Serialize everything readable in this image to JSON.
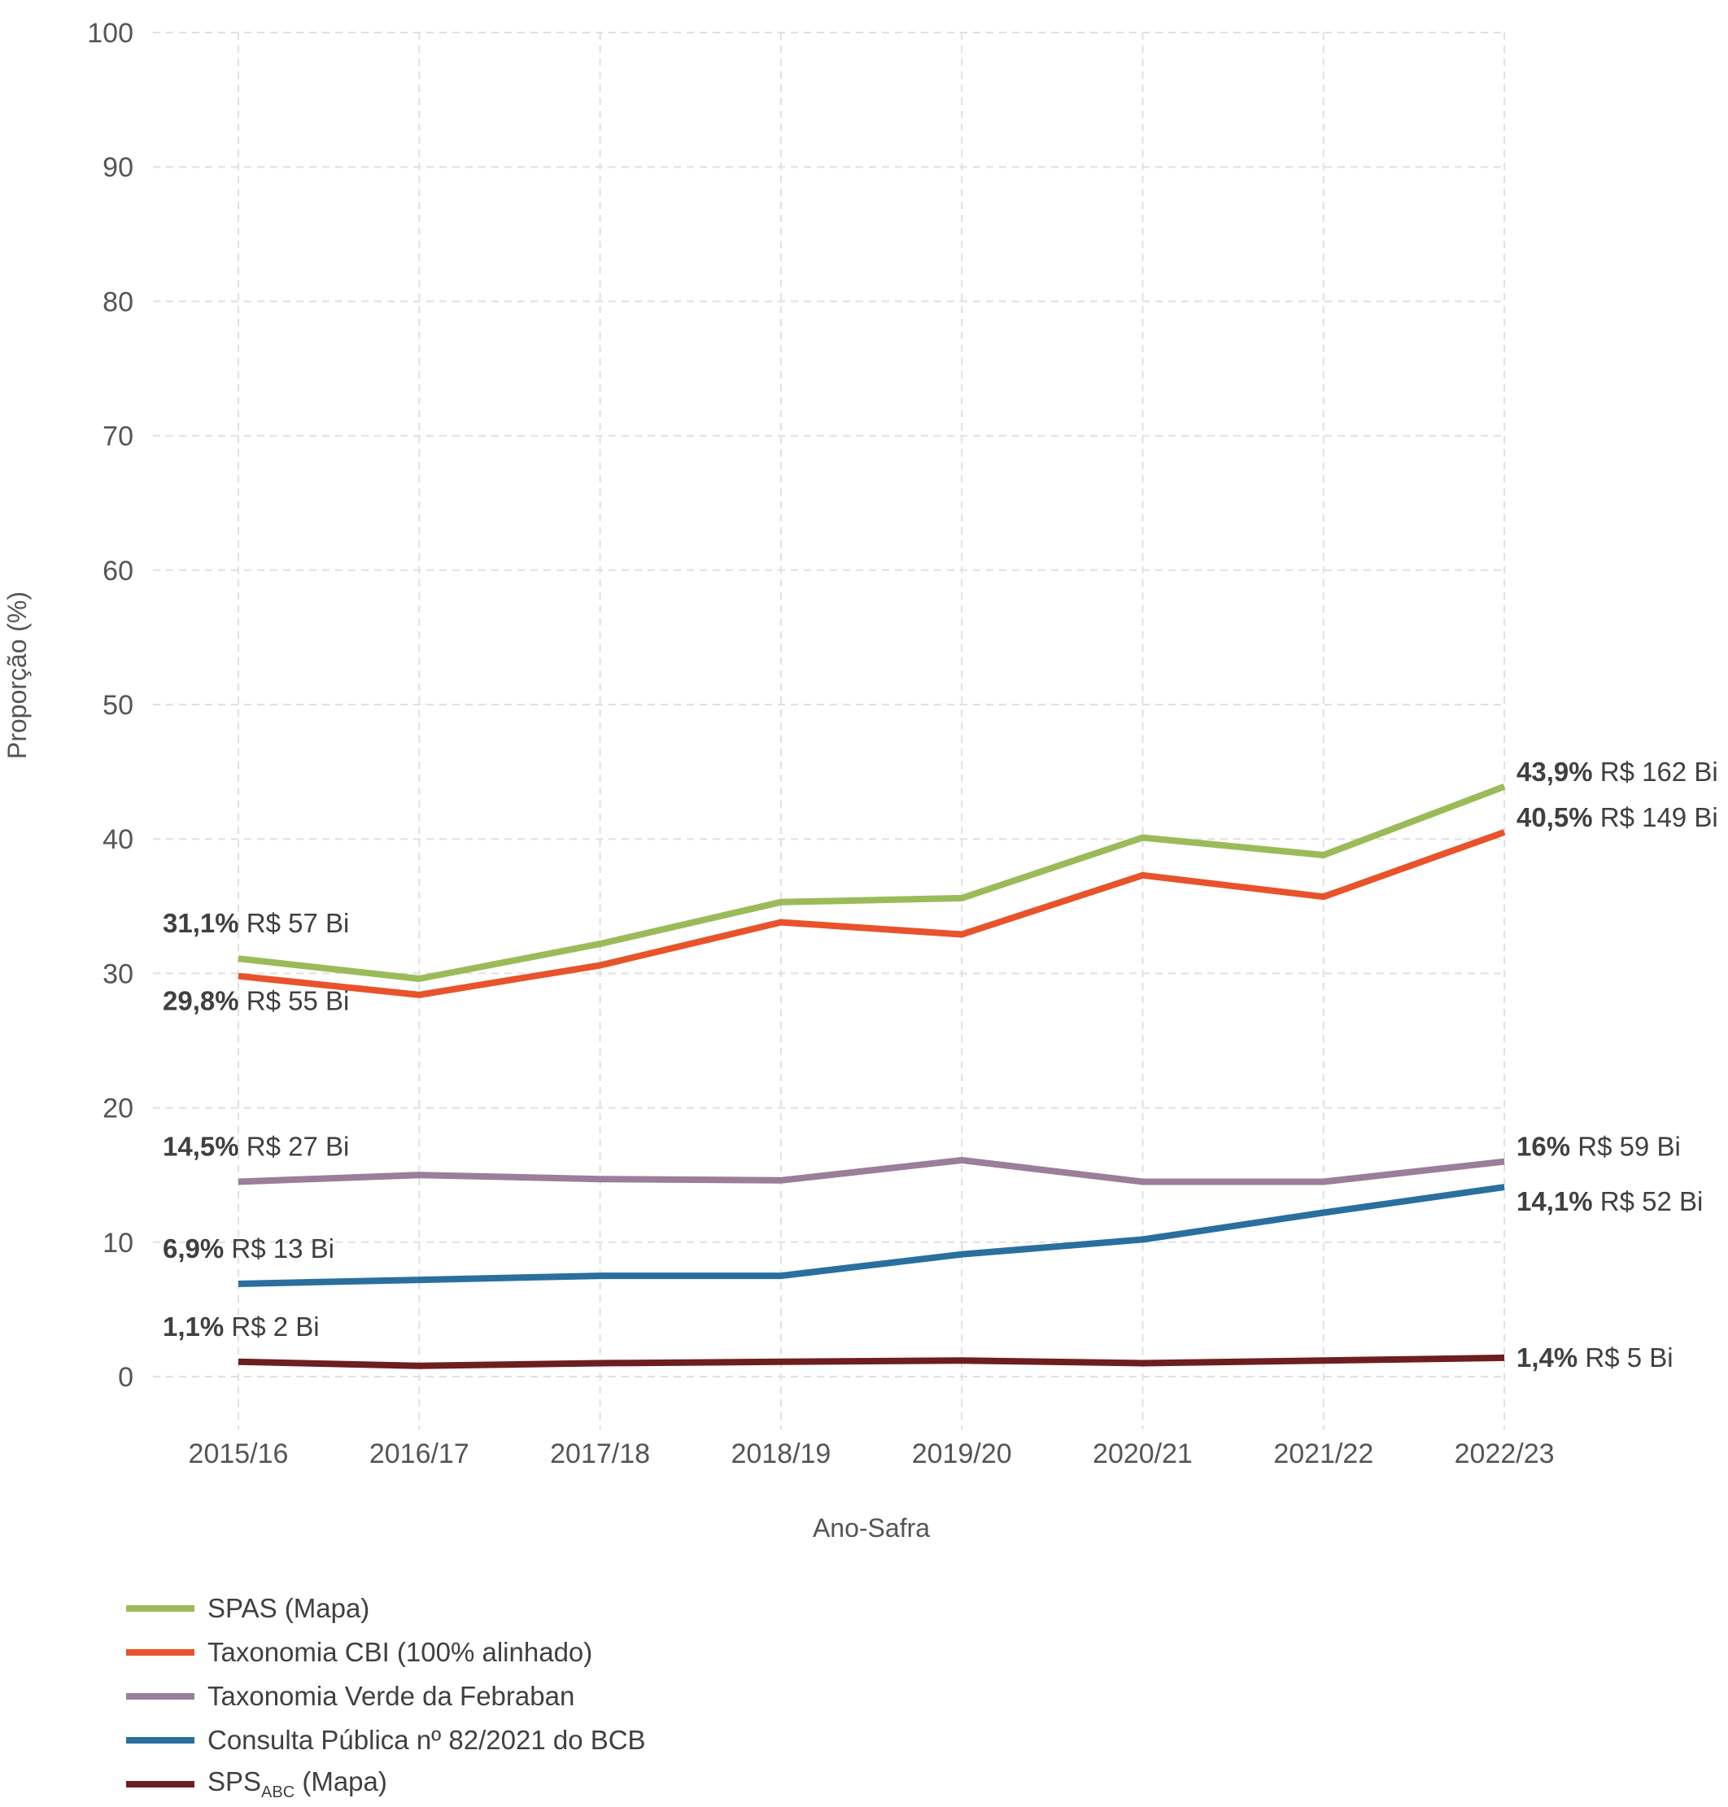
{
  "chart_data": {
    "type": "line",
    "xlabel": "Ano-Safra",
    "ylabel": "Proporção (%)",
    "ylim": [
      0,
      100
    ],
    "yticks": [
      "0",
      "10",
      "20",
      "30",
      "40",
      "50",
      "60",
      "70",
      "80",
      "90",
      "100"
    ],
    "grid": true,
    "legend_position": "bottom-left",
    "categories": [
      "2015/16",
      "2016/17",
      "2017/18",
      "2018/19",
      "2019/20",
      "2020/21",
      "2021/22",
      "2022/23"
    ],
    "series": [
      {
        "name": "SPAS (Mapa)",
        "color": "#9bbb59",
        "values": [
          31.1,
          29.6,
          32.2,
          35.3,
          35.6,
          40.1,
          38.8,
          43.9
        ],
        "start_label": {
          "pct": "31,1%",
          "amount": " R$ 57 Bi"
        },
        "end_label": {
          "pct": "43,9%",
          "amount": " R$ 162 Bi"
        }
      },
      {
        "name": "Taxonomia CBI (100% alinhado)",
        "color": "#e8532b",
        "values": [
          29.8,
          28.4,
          30.6,
          33.8,
          32.9,
          37.3,
          35.7,
          40.5
        ],
        "start_label": {
          "pct": "29,8%",
          "amount": " R$ 55 Bi"
        },
        "end_label": {
          "pct": "40,5%",
          "amount": " R$ 149 Bi"
        }
      },
      {
        "name": "Taxonomia Verde da Febraban",
        "color": "#9a7e9a",
        "values": [
          14.5,
          15.0,
          14.7,
          14.6,
          16.1,
          14.5,
          14.5,
          16.0
        ],
        "start_label": {
          "pct": "14,5%",
          "amount": " R$ 27 Bi"
        },
        "end_label": {
          "pct": "16%",
          "amount": " R$ 59 Bi"
        }
      },
      {
        "name": "Consulta Pública nº 82/2021 do BCB",
        "color": "#2a6f9e",
        "values": [
          6.9,
          7.2,
          7.5,
          7.5,
          9.1,
          10.2,
          12.2,
          14.1
        ],
        "start_label": {
          "pct": "6,9%",
          "amount": " R$ 13 Bi"
        },
        "end_label": {
          "pct": "14,1%",
          "amount": " R$ 52 Bi"
        }
      },
      {
        "name_main": "SPS",
        "name_sub": "ABC",
        "name_suffix": " (Mapa)",
        "color": "#6e1e1e",
        "values": [
          1.1,
          0.8,
          1.0,
          1.1,
          1.2,
          1.0,
          1.2,
          1.4
        ],
        "start_label": {
          "pct": "1,1%",
          "amount": " R$ 2 Bi"
        },
        "end_label": {
          "pct": "1,4%",
          "amount": " R$ 5 Bi"
        }
      }
    ]
  }
}
